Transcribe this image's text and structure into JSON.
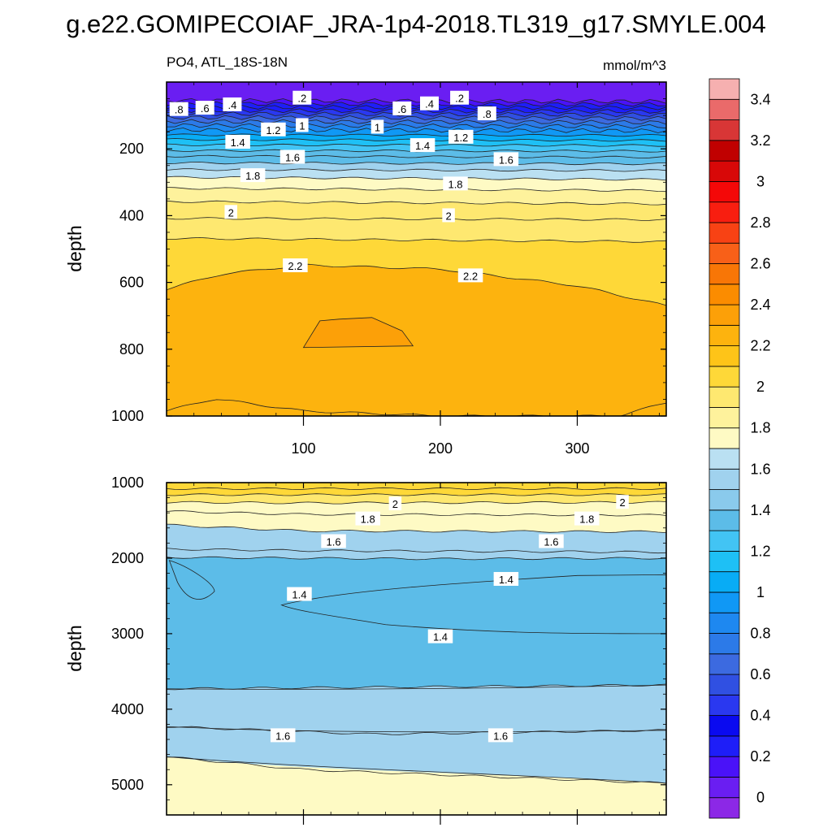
{
  "figure": {
    "title": "g.e22.GOMIPECOIAF_JRA-1p4-2018.TL319_g17.SMYLE.004"
  },
  "chart_data": [
    {
      "type": "contour",
      "panel": "upper",
      "subtitle_left": "PO4, ATL_18S-18N",
      "subtitle_right": "mmol/m^3",
      "ylabel": "depth",
      "xlabel": "",
      "xlim": [
        0,
        365
      ],
      "ylim": [
        1000,
        0
      ],
      "x_ticks": [
        100,
        200,
        300
      ],
      "y_ticks": [
        200,
        400,
        600,
        800,
        1000
      ],
      "x_tick_labels": [
        "100",
        "200",
        "300"
      ],
      "y_tick_labels": [
        "200",
        "400",
        "600",
        "800",
        "1000"
      ],
      "contour_levels": [
        0.2,
        0.4,
        0.6,
        0.8,
        1.0,
        1.2,
        1.4,
        1.6,
        1.8,
        2.0,
        2.2,
        2.4
      ],
      "contours": [
        {
          "level": 0.1,
          "x": [
            0,
            365
          ],
          "y": [
            55,
            58
          ]
        },
        {
          "level": 0.2,
          "x": [
            0,
            365
          ],
          "y": [
            65,
            67
          ]
        },
        {
          "level": 0.3,
          "x": [
            0,
            365
          ],
          "y": [
            75,
            77
          ]
        },
        {
          "level": 0.4,
          "x": [
            0,
            365
          ],
          "y": [
            85,
            88
          ]
        },
        {
          "level": 0.5,
          "x": [
            0,
            365
          ],
          "y": [
            95,
            98
          ]
        },
        {
          "level": 0.6,
          "x": [
            0,
            365
          ],
          "y": [
            106,
            109
          ]
        },
        {
          "level": 0.7,
          "x": [
            0,
            365
          ],
          "y": [
            118,
            121
          ]
        },
        {
          "level": 0.8,
          "x": [
            0,
            365
          ],
          "y": [
            130,
            133
          ]
        },
        {
          "level": 0.9,
          "x": [
            0,
            365
          ],
          "y": [
            143,
            146
          ]
        },
        {
          "level": 1.0,
          "x": [
            0,
            365
          ],
          "y": [
            158,
            160
          ]
        },
        {
          "level": 1.1,
          "x": [
            0,
            365
          ],
          "y": [
            172,
            175
          ]
        },
        {
          "level": 1.2,
          "x": [
            0,
            365
          ],
          "y": [
            188,
            190
          ]
        },
        {
          "level": 1.3,
          "x": [
            0,
            365
          ],
          "y": [
            205,
            207
          ]
        },
        {
          "level": 1.4,
          "x": [
            0,
            365
          ],
          "y": [
            222,
            225
          ]
        },
        {
          "level": 1.5,
          "x": [
            0,
            365
          ],
          "y": [
            242,
            245
          ]
        },
        {
          "level": 1.6,
          "x": [
            0,
            365
          ],
          "y": [
            262,
            265
          ]
        },
        {
          "level": 1.7,
          "x": [
            0,
            365
          ],
          "y": [
            285,
            292
          ]
        },
        {
          "level": 1.8,
          "x": [
            0,
            365
          ],
          "y": [
            318,
            325
          ]
        },
        {
          "level": 1.9,
          "x": [
            0,
            365
          ],
          "y": [
            358,
            365
          ]
        },
        {
          "level": 2.0,
          "x": [
            0,
            365
          ],
          "y": [
            408,
            412
          ]
        },
        {
          "level": 2.1,
          "x": [
            0,
            365
          ],
          "y": [
            468,
            478
          ]
        },
        {
          "level": 2.2,
          "x": [
            0,
            40,
            100,
            200,
            300,
            365
          ],
          "y": [
            620,
            575,
            548,
            560,
            610,
            670
          ]
        },
        {
          "level": 2.3,
          "x": [
            100,
            112,
            126,
            150,
            172,
            180
          ],
          "y": [
            795,
            715,
            710,
            705,
            745,
            790
          ]
        },
        {
          "level": 2.2,
          "x": [
            0,
            35,
            100,
            200,
            330,
            365
          ],
          "y": [
            985,
            948,
            985,
            1000,
            1000,
            960
          ]
        }
      ],
      "labels": [
        {
          "text": ".8",
          "x": 9,
          "y": 82
        },
        {
          "text": ".6",
          "x": 28,
          "y": 78
        },
        {
          "text": ".4",
          "x": 48,
          "y": 68
        },
        {
          "text": ".2",
          "x": 99,
          "y": 48
        },
        {
          "text": ".6",
          "x": 172,
          "y": 80
        },
        {
          "text": ".4",
          "x": 192,
          "y": 65
        },
        {
          "text": ".2",
          "x": 214,
          "y": 48
        },
        {
          "text": ".8",
          "x": 234,
          "y": 95
        },
        {
          "text": "1",
          "x": 99,
          "y": 130
        },
        {
          "text": "1",
          "x": 154,
          "y": 135
        },
        {
          "text": "1.2",
          "x": 78,
          "y": 143
        },
        {
          "text": "1.2",
          "x": 215,
          "y": 165
        },
        {
          "text": "1.4",
          "x": 52,
          "y": 180
        },
        {
          "text": "1.4",
          "x": 187,
          "y": 190
        },
        {
          "text": "1.6",
          "x": 92,
          "y": 225
        },
        {
          "text": "1.6",
          "x": 248,
          "y": 232
        },
        {
          "text": "1.8",
          "x": 63,
          "y": 280
        },
        {
          "text": "1.8",
          "x": 211,
          "y": 305
        },
        {
          "text": "2",
          "x": 47,
          "y": 390
        },
        {
          "text": "2",
          "x": 206,
          "y": 400
        },
        {
          "text": "2.2",
          "x": 94,
          "y": 550
        },
        {
          "text": "2.2",
          "x": 222,
          "y": 580
        }
      ]
    },
    {
      "type": "contour",
      "panel": "lower",
      "subtitle_left": "",
      "subtitle_right": "",
      "ylabel": "depth",
      "xlabel": "",
      "xlim": [
        0,
        365
      ],
      "ylim": [
        5400,
        1000
      ],
      "y_ticks": [
        1000,
        2000,
        3000,
        4000,
        5000
      ],
      "y_tick_labels": [
        "1000",
        "2000",
        "3000",
        "4000",
        "5000"
      ],
      "contour_levels": [
        1.4,
        1.5,
        1.6,
        1.7,
        1.8,
        1.9,
        2.0,
        2.1
      ],
      "contours": [
        {
          "level": 2.1,
          "x": [
            0,
            365
          ],
          "y": [
            1080,
            1080
          ]
        },
        {
          "level": 2.0,
          "x": [
            0,
            365
          ],
          "y": [
            1160,
            1160
          ]
        },
        {
          "level": 1.9,
          "x": [
            0,
            100,
            365
          ],
          "y": [
            1260,
            1270,
            1260
          ]
        },
        {
          "level": 1.8,
          "x": [
            0,
            100,
            365
          ],
          "y": [
            1380,
            1420,
            1430
          ]
        },
        {
          "level": 1.7,
          "x": [
            0,
            100,
            365
          ],
          "y": [
            1560,
            1640,
            1650
          ]
        },
        {
          "level": 1.6,
          "x": [
            0,
            100,
            365
          ],
          "y": [
            1880,
            1900,
            1920
          ]
        },
        {
          "level": 1.5,
          "x": [
            0,
            200,
            365
          ],
          "y": [
            1990,
            2010,
            2000
          ]
        },
        {
          "level": 1.6,
          "x": [
            0,
            365
          ],
          "y": [
            3730,
            3680
          ]
        },
        {
          "level": 1.6,
          "x": [
            0,
            150,
            365
          ],
          "y": [
            4230,
            4330,
            4280
          ]
        },
        {
          "level": 1.7,
          "x": [
            0,
            100,
            365
          ],
          "y": [
            4630,
            4800,
            4980
          ]
        }
      ],
      "labels": [
        {
          "text": "2",
          "x": 167,
          "y": 1280
        },
        {
          "text": "2",
          "x": 333,
          "y": 1260
        },
        {
          "text": "1.8",
          "x": 147,
          "y": 1480
        },
        {
          "text": "1.8",
          "x": 307,
          "y": 1480
        },
        {
          "text": "1.6",
          "x": 122,
          "y": 1780
        },
        {
          "text": "1.6",
          "x": 281,
          "y": 1780
        },
        {
          "text": "1.4",
          "x": 97,
          "y": 2480
        },
        {
          "text": "1.4",
          "x": 248,
          "y": 2280
        },
        {
          "text": "1.4",
          "x": 200,
          "y": 3040
        },
        {
          "text": "1.6",
          "x": 85,
          "y": 4350
        },
        {
          "text": "1.6",
          "x": 244,
          "y": 4350
        }
      ]
    }
  ],
  "colorbar": {
    "label_values": [
      "0",
      "0.2",
      "0.4",
      "0.6",
      "0.8",
      "1",
      "1.2",
      "1.4",
      "1.6",
      "1.8",
      "2",
      "2.2",
      "2.4",
      "2.6",
      "2.8",
      "3",
      "3.2",
      "3.4"
    ],
    "colors": [
      "#8c28e6",
      "#6a1ef2",
      "#4a12f8",
      "#1e1ef8",
      "#0a0af0",
      "#2a38f0",
      "#3050e2",
      "#3c6ae0",
      "#2c7ae8",
      "#1e88f0",
      "#1098f5",
      "#08acf5",
      "#1ec0f5",
      "#42c4f4",
      "#5cbce8",
      "#8acaec",
      "#a0d2ee",
      "#bae0f2",
      "#fefac4",
      "#fef29c",
      "#fee870",
      "#fed838",
      "#fec418",
      "#fdb30e",
      "#fca008",
      "#fb8c00",
      "#f87606",
      "#f86018",
      "#f84214",
      "#f81e10",
      "#f40808",
      "#d80808",
      "#c00000",
      "#d83636",
      "#ea6a6a",
      "#f6b0b0"
    ]
  }
}
